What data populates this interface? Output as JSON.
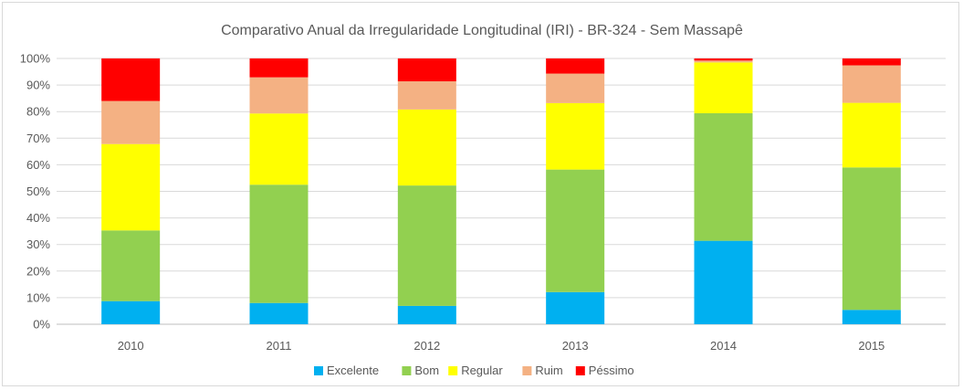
{
  "chart_data": {
    "type": "bar",
    "stacked": true,
    "percent": true,
    "title": "Comparativo Anual da Irregularidade Longitudinal (IRI) - BR-324 - Sem Massapê",
    "categories": [
      "2010",
      "2011",
      "2012",
      "2013",
      "2014",
      "2015"
    ],
    "ylim": [
      0,
      100
    ],
    "yticks": [
      "0%",
      "10%",
      "20%",
      "30%",
      "40%",
      "50%",
      "60%",
      "70%",
      "80%",
      "90%",
      "100%"
    ],
    "grid": true,
    "legend_position": "bottom",
    "series": [
      {
        "name": "Excelente",
        "color": "#00b0f0",
        "values": [
          8.7,
          8.0,
          6.9,
          12.1,
          31.4,
          5.4
        ]
      },
      {
        "name": "Bom",
        "color": "#92d050",
        "values": [
          26.6,
          44.5,
          45.3,
          46.1,
          48.0,
          53.6
        ]
      },
      {
        "name": "Regular",
        "color": "#ffff00",
        "values": [
          32.5,
          26.8,
          28.6,
          25.0,
          19.1,
          24.3
        ]
      },
      {
        "name": "Ruim",
        "color": "#f4b183",
        "values": [
          16.2,
          13.6,
          10.6,
          11.1,
          0.7,
          14.1
        ]
      },
      {
        "name": "Péssimo",
        "color": "#ff0000",
        "values": [
          16.0,
          7.1,
          8.6,
          5.7,
          0.8,
          2.6
        ]
      }
    ]
  }
}
